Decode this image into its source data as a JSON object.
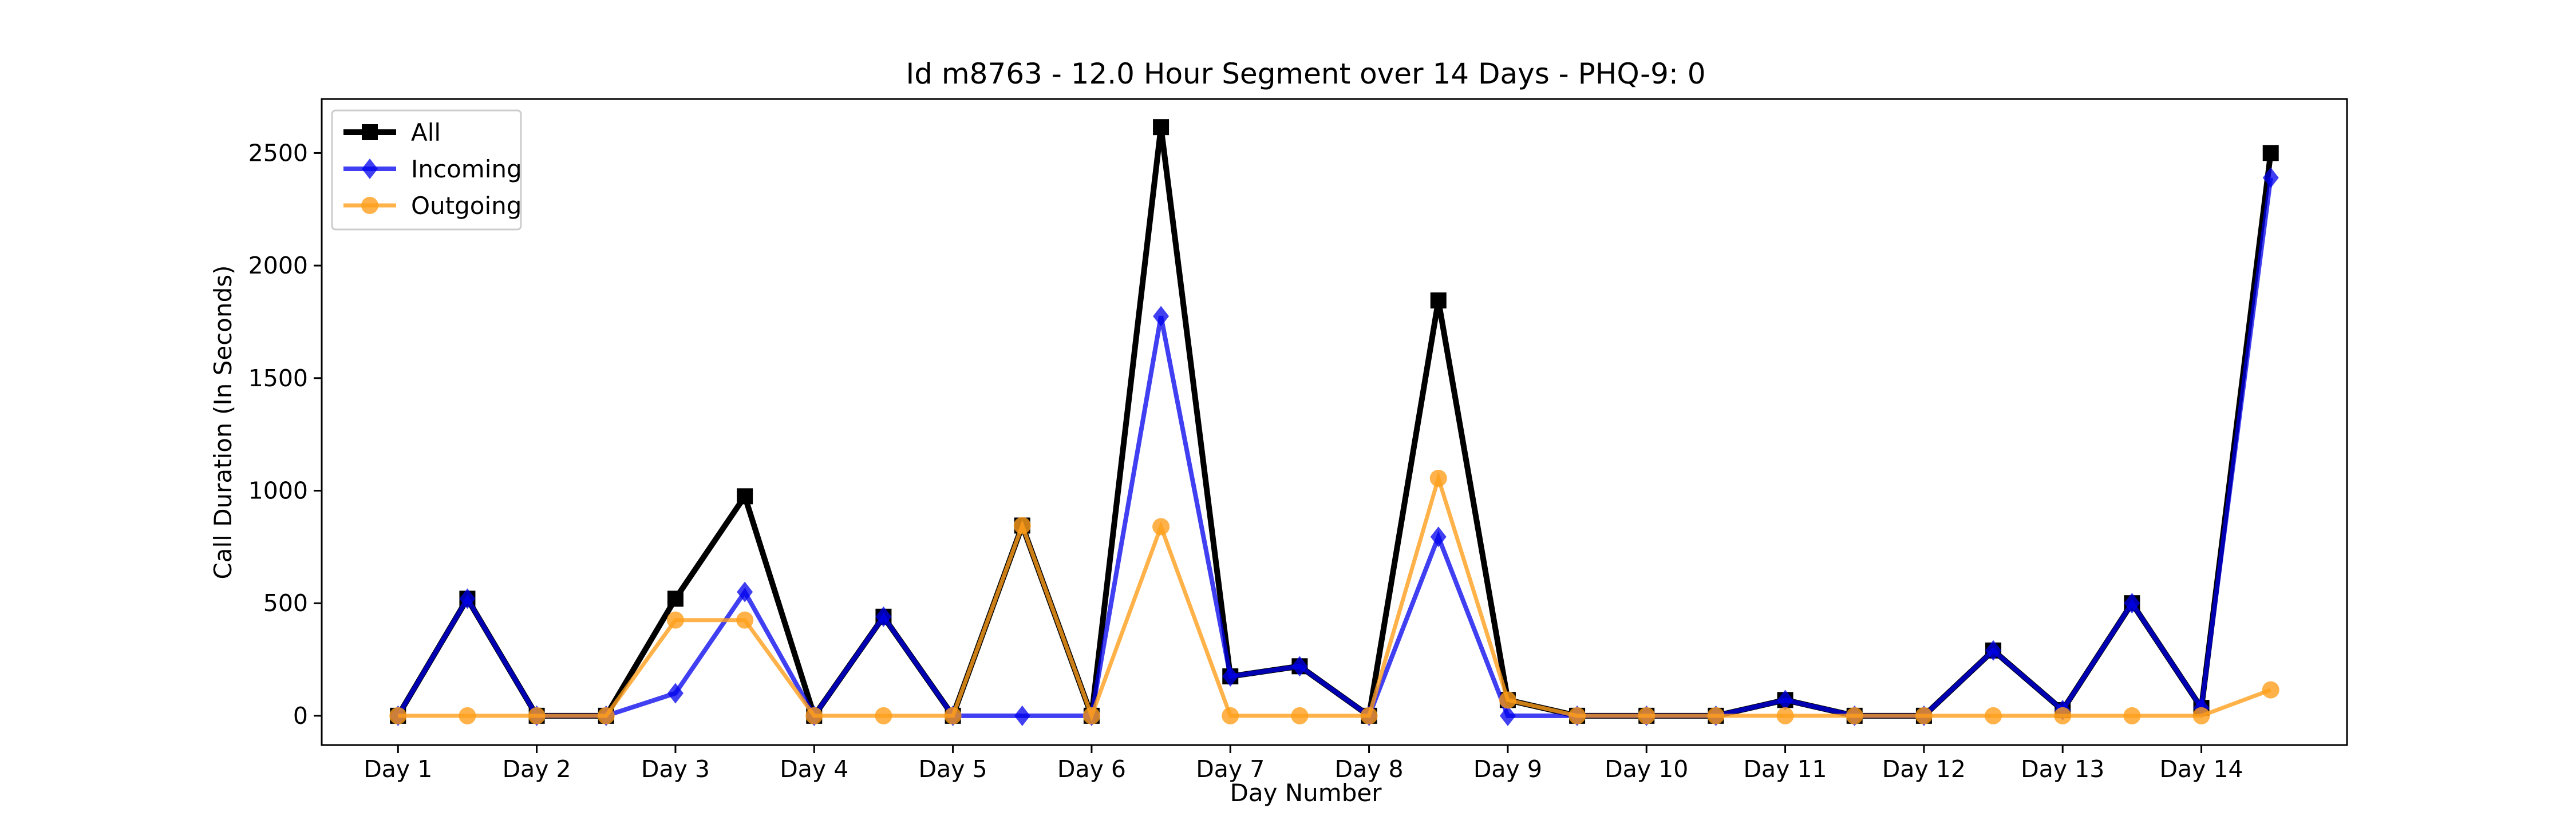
{
  "chart_data": {
    "type": "line",
    "title": "Id m8763 - 12.0 Hour Segment over 14 Days - PHQ-9: 0",
    "xlabel": "Day Number",
    "ylabel": "Call Duration (In Seconds)",
    "x": [
      1,
      1.5,
      2,
      2.5,
      3,
      3.5,
      4,
      4.5,
      5,
      5.5,
      6,
      6.5,
      7,
      7.5,
      8,
      8.5,
      9,
      9.5,
      10,
      10.5,
      11,
      11.5,
      12,
      12.5,
      13,
      13.5,
      14,
      14.5
    ],
    "xticks": [
      1,
      2,
      3,
      4,
      5,
      6,
      7,
      8,
      9,
      10,
      11,
      12,
      13,
      14
    ],
    "xtick_labels": [
      "Day 1",
      "Day 2",
      "Day 3",
      "Day 4",
      "Day 5",
      "Day 6",
      "Day 7",
      "Day 8",
      "Day 9",
      "Day 10",
      "Day 11",
      "Day 12",
      "Day 13",
      "Day 14"
    ],
    "xlim": [
      0.45,
      15.05
    ],
    "yticks": [
      0,
      500,
      1000,
      1500,
      2000,
      2500
    ],
    "ylim": [
      -130,
      2740
    ],
    "grid": false,
    "legend_position": "top-left",
    "series": [
      {
        "name": "All",
        "color": "#000000",
        "marker": "square",
        "values": [
          0,
          520,
          0,
          0,
          520,
          975,
          0,
          440,
          0,
          845,
          0,
          2615,
          175,
          220,
          0,
          1845,
          70,
          0,
          0,
          0,
          70,
          0,
          0,
          290,
          25,
          500,
          35,
          2500
        ]
      },
      {
        "name": "Incoming",
        "color": "#0000ee",
        "marker": "diamond",
        "values": [
          0,
          520,
          0,
          0,
          100,
          550,
          0,
          440,
          0,
          0,
          0,
          1775,
          175,
          220,
          0,
          795,
          0,
          0,
          0,
          0,
          70,
          0,
          0,
          290,
          25,
          500,
          35,
          2390
        ]
      },
      {
        "name": "Outgoing",
        "color": "#ff9f1c",
        "marker": "circle",
        "values": [
          0,
          0,
          0,
          0,
          425,
          425,
          0,
          0,
          0,
          845,
          0,
          840,
          0,
          0,
          0,
          1055,
          70,
          0,
          0,
          0,
          0,
          0,
          0,
          0,
          0,
          0,
          0,
          115
        ]
      }
    ]
  }
}
